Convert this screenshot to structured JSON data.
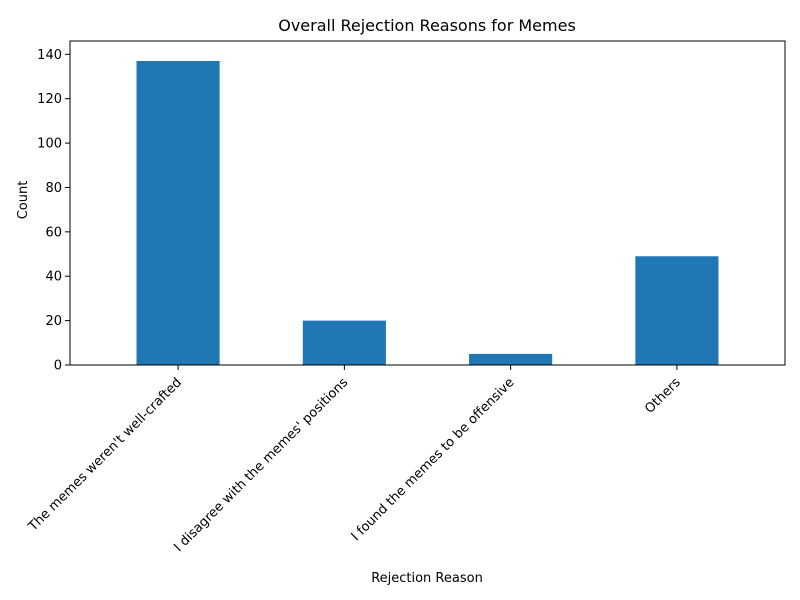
{
  "chart_data": {
    "type": "bar",
    "title": "Overall Rejection Reasons for Memes",
    "xlabel": "Rejection Reason",
    "ylabel": "Count",
    "categories": [
      "The memes weren't well-crafted",
      "I disagree with the memes' positions",
      "I found the memes to be offensive",
      "Others"
    ],
    "values": [
      137,
      20,
      5,
      49
    ],
    "ylim": [
      0,
      146
    ],
    "yticks": [
      0,
      20,
      40,
      60,
      80,
      100,
      120,
      140
    ],
    "bar_color": "#1f77b4",
    "grid": false,
    "legend": "none"
  }
}
